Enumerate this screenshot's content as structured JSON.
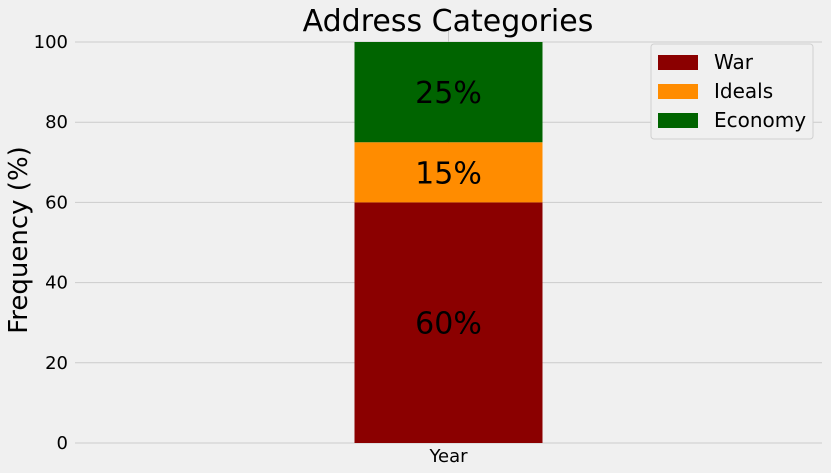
{
  "chart_data": {
    "type": "bar",
    "stacked": true,
    "title": "Address Categories",
    "ylabel": "Frequency (%)",
    "xlabel": "",
    "categories": [
      "Year"
    ],
    "ylim": [
      0,
      100
    ],
    "yticks": [
      0,
      20,
      40,
      60,
      80,
      100
    ],
    "grid": true,
    "legend_position": "top-right",
    "series": [
      {
        "name": "War",
        "values": [
          60
        ],
        "label": "60%",
        "color": "#8b0000"
      },
      {
        "name": "Ideals",
        "values": [
          15
        ],
        "label": "15%",
        "color": "#ff8c00"
      },
      {
        "name": "Economy",
        "values": [
          25
        ],
        "label": "25%",
        "color": "#006400"
      }
    ]
  }
}
